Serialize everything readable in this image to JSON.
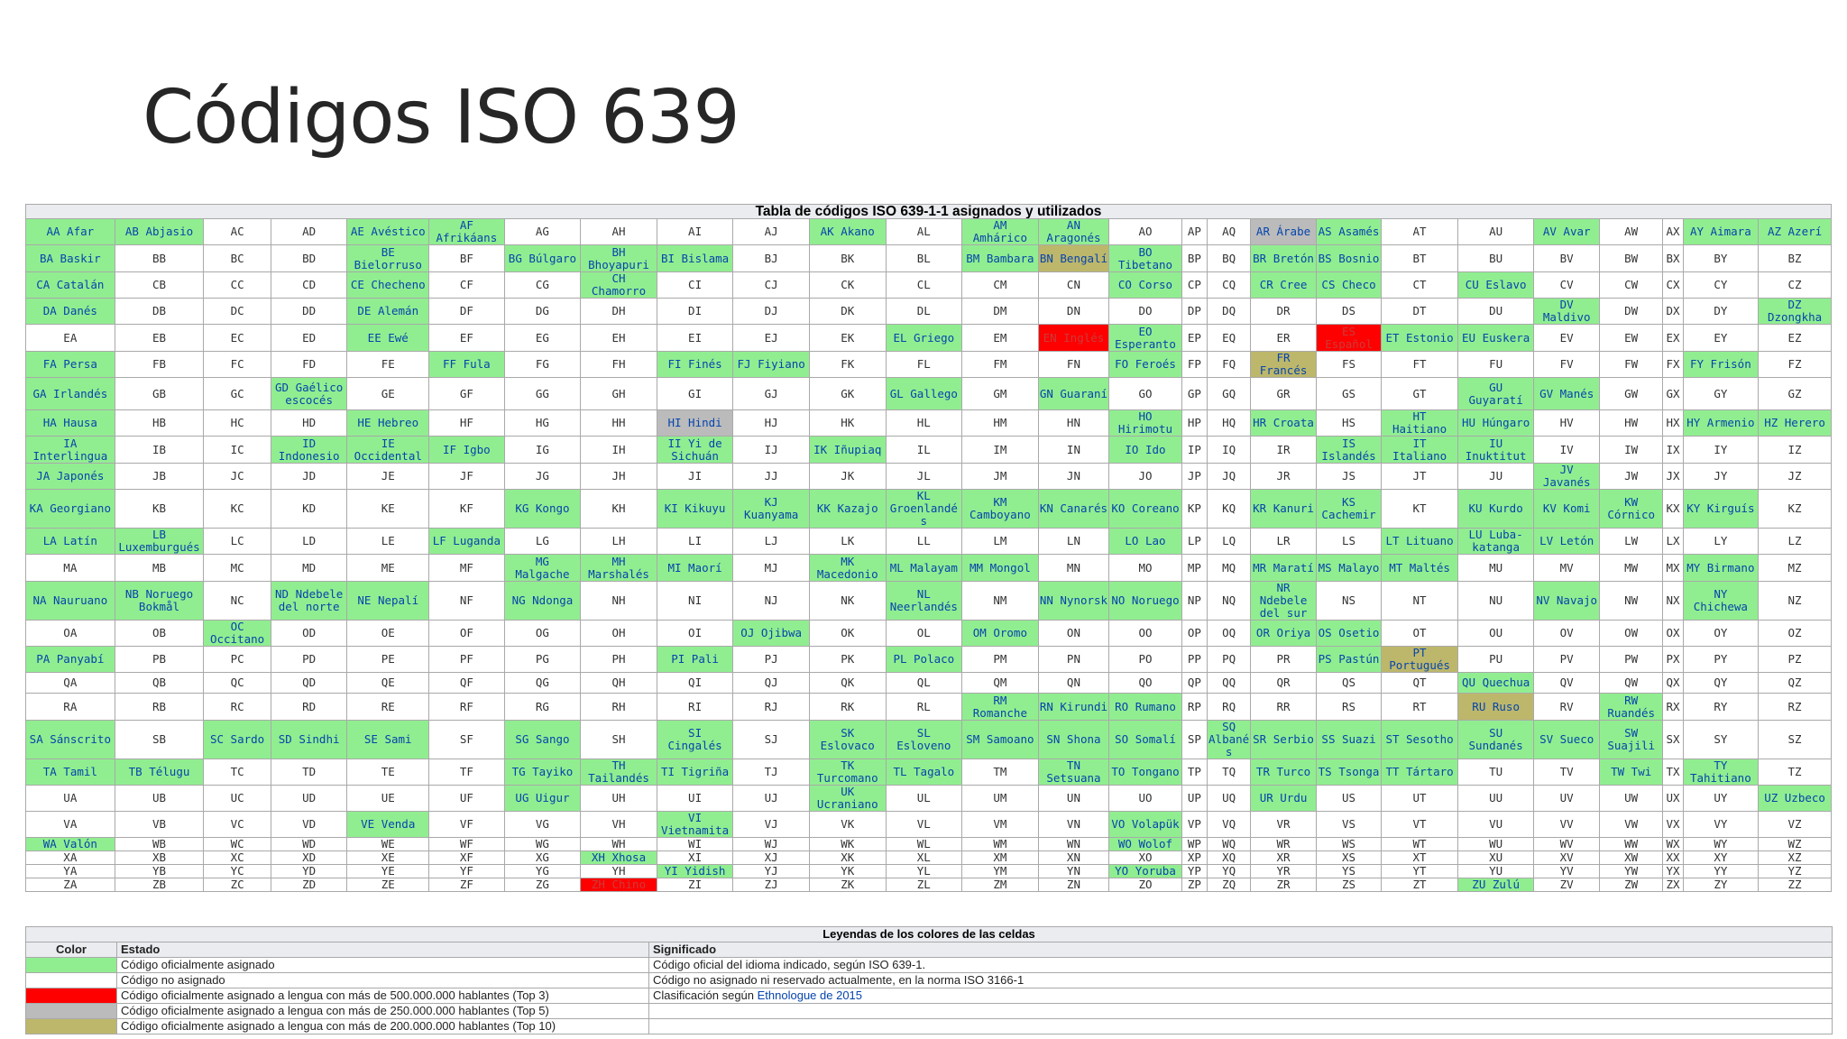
{
  "slide": {
    "title": "Códigos ISO 639"
  },
  "table": {
    "caption": "Tabla de códigos ISO 639-1-1 asignados y utilizados",
    "legend_caption": "Leyendas de los colores de las celdas",
    "rows": [
      [
        "g:AA Afar",
        "g:AB Abjasio",
        "AC",
        "AD",
        "g:AE Avéstico",
        "g:AF Afrikáans",
        "AG",
        "AH",
        "AI",
        "AJ",
        "g:AK Akano",
        "AL",
        "g:AM Amhárico",
        "g:AN Aragonés",
        "AO",
        "AP",
        "AQ",
        "s:AR Árabe",
        "g:AS Asamés",
        "AT",
        "AU",
        "g:AV Avar",
        "AW",
        "AX",
        "g:AY Aimara",
        "g:AZ Azerí"
      ],
      [
        "g:BA Baskir",
        "BB",
        "BC",
        "BD",
        "g:BE Bielorruso",
        "BF",
        "g:BG Búlgaro",
        "g:BH Bhoyapuri",
        "g:BI Bislama",
        "BJ",
        "BK",
        "BL",
        "g:BM Bambara",
        "o:BN Bengalí",
        "g:BO Tibetano",
        "BP",
        "BQ",
        "g:BR Bretón",
        "g:BS Bosnio",
        "BT",
        "BU",
        "BV",
        "BW",
        "BX",
        "BY",
        "BZ"
      ],
      [
        "g:CA Catalán",
        "CB",
        "CC",
        "CD",
        "g:CE Checheno",
        "CF",
        "CG",
        "g:CH Chamorro",
        "CI",
        "CJ",
        "CK",
        "CL",
        "CM",
        "CN",
        "g:CO Corso",
        "CP",
        "CQ",
        "g:CR Cree",
        "g:CS Checo",
        "CT",
        "g:CU Eslavo",
        "CV",
        "CW",
        "CX",
        "CY",
        "CZ"
      ],
      [
        "g:DA Danés",
        "DB",
        "DC",
        "DD",
        "g:DE Alemán",
        "DF",
        "DG",
        "DH",
        "DI",
        "DJ",
        "DK",
        "DL",
        "DM",
        "DN",
        "DO",
        "DP",
        "DQ",
        "DR",
        "DS",
        "DT",
        "DU",
        "g:DV Maldivo",
        "DW",
        "DX",
        "DY",
        "g:DZ Dzongkha"
      ],
      [
        "EA",
        "EB",
        "EC",
        "ED",
        "g:EE Ewé",
        "EF",
        "EG",
        "EH",
        "EI",
        "EJ",
        "EK",
        "g:EL Griego",
        "EM",
        "r:EN Inglés",
        "g:EO Esperanto",
        "EP",
        "EQ",
        "ER",
        "r:ES Español",
        "g:ET Estonio",
        "g:EU Euskera",
        "EV",
        "EW",
        "EX",
        "EY",
        "EZ"
      ],
      [
        "g:FA Persa",
        "FB",
        "FC",
        "FD",
        "FE",
        "g:FF Fula",
        "FG",
        "FH",
        "g:FI Finés",
        "g:FJ Fiyiano",
        "FK",
        "FL",
        "FM",
        "FN",
        "g:FO Feroés",
        "FP",
        "FQ",
        "o:FR Francés",
        "FS",
        "FT",
        "FU",
        "FV",
        "FW",
        "FX",
        "g:FY Frisón",
        "FZ"
      ],
      [
        "g:GA Irlandés",
        "GB",
        "GC",
        "g:GD Gaélico escocés",
        "GE",
        "GF",
        "GG",
        "GH",
        "GI",
        "GJ",
        "GK",
        "g:GL Gallego",
        "GM",
        "g:GN Guaraní",
        "GO",
        "GP",
        "GQ",
        "GR",
        "GS",
        "GT",
        "g:GU Guyaratí",
        "g:GV Manés",
        "GW",
        "GX",
        "GY",
        "GZ"
      ],
      [
        "g:HA Hausa",
        "HB",
        "HC",
        "HD",
        "g:HE Hebreo",
        "HF",
        "HG",
        "HH",
        "s:HI Hindi",
        "HJ",
        "HK",
        "HL",
        "HM",
        "HN",
        "g:HO Hirimotu",
        "HP",
        "HQ",
        "g:HR Croata",
        "HS",
        "g:HT Haitiano",
        "g:HU Húngaro",
        "HV",
        "HW",
        "HX",
        "g:HY Armenio",
        "g:HZ Herero"
      ],
      [
        "g:IA Interlingua",
        "IB",
        "IC",
        "g:ID Indonesio",
        "g:IE Occidental",
        "g:IF Igbo",
        "IG",
        "IH",
        "g:II Yi de Sichuán",
        "IJ",
        "g:IK Iñupiaq",
        "IL",
        "IM",
        "IN",
        "g:IO Ido",
        "IP",
        "IQ",
        "IR",
        "g:IS Islandés",
        "g:IT Italiano",
        "g:IU Inuktitut",
        "IV",
        "IW",
        "IX",
        "IY",
        "IZ"
      ],
      [
        "g:JA Japonés",
        "JB",
        "JC",
        "JD",
        "JE",
        "JF",
        "JG",
        "JH",
        "JI",
        "JJ",
        "JK",
        "JL",
        "JM",
        "JN",
        "JO",
        "JP",
        "JQ",
        "JR",
        "JS",
        "JT",
        "JU",
        "g:JV Javanés",
        "JW",
        "JX",
        "JY",
        "JZ"
      ],
      [
        "g:KA Georgiano",
        "KB",
        "KC",
        "KD",
        "KE",
        "KF",
        "g:KG Kongo",
        "KH",
        "g:KI Kikuyu",
        "g:KJ Kuanyama",
        "g:KK Kazajo",
        "g:KL Groenlandés",
        "g:KM Camboyano",
        "g:KN Canarés",
        "g:KO Coreano",
        "KP",
        "KQ",
        "g:KR Kanuri",
        "g:KS Cachemir",
        "KT",
        "g:KU Kurdo",
        "g:KV Komi",
        "g:KW Córnico",
        "KX",
        "g:KY Kirguís",
        "KZ"
      ],
      [
        "g:LA Latín",
        "g:LB Luxemburgués",
        "LC",
        "LD",
        "LE",
        "g:LF Luganda",
        "LG",
        "LH",
        "LI",
        "LJ",
        "LK",
        "LL",
        "LM",
        "LN",
        "g:LO Lao",
        "LP",
        "LQ",
        "LR",
        "LS",
        "g:LT Lituano",
        "g:LU Luba-katanga",
        "g:LV Letón",
        "LW",
        "LX",
        "LY",
        "LZ"
      ],
      [
        "MA",
        "MB",
        "MC",
        "MD",
        "ME",
        "MF",
        "g:MG Malgache",
        "g:MH Marshalés",
        "g:MI Maorí",
        "MJ",
        "g:MK Macedonio",
        "g:ML Malayam",
        "g:MM Mongol",
        "MN",
        "MO",
        "MP",
        "MQ",
        "g:MR Maratí",
        "g:MS Malayo",
        "g:MT Maltés",
        "MU",
        "MV",
        "MW",
        "MX",
        "g:MY Birmano",
        "MZ"
      ],
      [
        "g:NA Nauruano",
        "g:NB Noruego Bokmål",
        "NC",
        "g:ND Ndebele del norte",
        "g:NE Nepalí",
        "NF",
        "g:NG Ndonga",
        "NH",
        "NI",
        "NJ",
        "NK",
        "g:NL Neerlandés",
        "NM",
        "g:NN Nynorsk",
        "g:NO Noruego",
        "NP",
        "NQ",
        "g:NR Ndebele del sur",
        "NS",
        "NT",
        "NU",
        "g:NV Navajo",
        "NW",
        "NX",
        "g:NY Chichewa",
        "NZ"
      ],
      [
        "OA",
        "OB",
        "g:OC Occitano",
        "OD",
        "OE",
        "OF",
        "OG",
        "OH",
        "OI",
        "g:OJ Ojibwa",
        "OK",
        "OL",
        "g:OM Oromo",
        "ON",
        "OO",
        "OP",
        "OQ",
        "g:OR Oriya",
        "g:OS Osetio",
        "OT",
        "OU",
        "OV",
        "OW",
        "OX",
        "OY",
        "OZ"
      ],
      [
        "g:PA Panyabí",
        "PB",
        "PC",
        "PD",
        "PE",
        "PF",
        "PG",
        "PH",
        "g:PI Pali",
        "PJ",
        "PK",
        "g:PL Polaco",
        "PM",
        "PN",
        "PO",
        "PP",
        "PQ",
        "PR",
        "g:PS Pastún",
        "o:PT Portugués",
        "PU",
        "PV",
        "PW",
        "PX",
        "PY",
        "PZ"
      ],
      [
        "QA",
        "QB",
        "QC",
        "QD",
        "QE",
        "QF",
        "QG",
        "QH",
        "QI",
        "QJ",
        "QK",
        "QL",
        "QM",
        "QN",
        "QO",
        "QP",
        "QQ",
        "QR",
        "QS",
        "QT",
        "g:QU Quechua",
        "QV",
        "QW",
        "QX",
        "QY",
        "QZ"
      ],
      [
        "RA",
        "RB",
        "RC",
        "RD",
        "RE",
        "RF",
        "RG",
        "RH",
        "RI",
        "RJ",
        "RK",
        "RL",
        "g:RM Romanche",
        "g:RN Kirundi",
        "g:RO Rumano",
        "RP",
        "RQ",
        "RR",
        "RS",
        "RT",
        "o:RU Ruso",
        "RV",
        "g:RW Ruandés",
        "RX",
        "RY",
        "RZ"
      ],
      [
        "g:SA Sánscrito",
        "SB",
        "g:SC Sardo",
        "g:SD Sindhi",
        "g:SE Sami",
        "SF",
        "g:SG Sango",
        "SH",
        "g:SI Cingalés",
        "SJ",
        "g:SK Eslovaco",
        "g:SL Esloveno",
        "g:SM Samoano",
        "g:SN Shona",
        "g:SO Somalí",
        "SP",
        "g:SQ Albanés",
        "g:SR Serbio",
        "g:SS Suazi",
        "g:ST Sesotho",
        "g:SU Sundanés",
        "g:SV Sueco",
        "g:SW Suajili",
        "SX",
        "SY",
        "SZ"
      ],
      [
        "g:TA Tamil",
        "g:TB Télugu",
        "TC",
        "TD",
        "TE",
        "TF",
        "g:TG Tayiko",
        "g:TH Tailandés",
        "g:TI Tigriña",
        "TJ",
        "g:TK Turcomano",
        "g:TL Tagalo",
        "TM",
        "g:TN Setsuana",
        "g:TO Tongano",
        "TP",
        "TQ",
        "g:TR Turco",
        "g:TS Tsonga",
        "g:TT Tártaro",
        "TU",
        "TV",
        "g:TW Twi",
        "TX",
        "g:TY Tahitiano",
        "TZ"
      ],
      [
        "UA",
        "UB",
        "UC",
        "UD",
        "UE",
        "UF",
        "g:UG Uigur",
        "UH",
        "UI",
        "UJ",
        "g:UK Ucraniano",
        "UL",
        "UM",
        "UN",
        "UO",
        "UP",
        "UQ",
        "g:UR Urdu",
        "US",
        "UT",
        "UU",
        "UV",
        "UW",
        "UX",
        "UY",
        "g:UZ Uzbeco"
      ],
      [
        "VA",
        "VB",
        "VC",
        "VD",
        "g:VE Venda",
        "VF",
        "VG",
        "VH",
        "g:VI Vietnamita",
        "VJ",
        "VK",
        "VL",
        "VM",
        "VN",
        "g:VO Volapük",
        "VP",
        "VQ",
        "VR",
        "VS",
        "VT",
        "VU",
        "VV",
        "VW",
        "VX",
        "VY",
        "VZ"
      ],
      [
        "g:WA Valón",
        "WB",
        "WC",
        "WD",
        "WE",
        "WF",
        "WG",
        "WH",
        "WI",
        "WJ",
        "WK",
        "WL",
        "WM",
        "WN",
        "g:WO Wolof",
        "WP",
        "WQ",
        "WR",
        "WS",
        "WT",
        "WU",
        "WV",
        "WW",
        "WX",
        "WY",
        "WZ"
      ],
      [
        "XA",
        "XB",
        "XC",
        "XD",
        "XE",
        "XF",
        "XG",
        "g:XH Xhosa",
        "XI",
        "XJ",
        "XK",
        "XL",
        "XM",
        "XN",
        "XO",
        "XP",
        "XQ",
        "XR",
        "XS",
        "XT",
        "XU",
        "XV",
        "XW",
        "XX",
        "XY",
        "XZ"
      ],
      [
        "YA",
        "YB",
        "YC",
        "YD",
        "YE",
        "YF",
        "YG",
        "YH",
        "g:YI Yidish",
        "YJ",
        "YK",
        "YL",
        "YM",
        "YN",
        "g:YO Yoruba",
        "YP",
        "YQ",
        "YR",
        "YS",
        "YT",
        "YU",
        "YV",
        "YW",
        "YX",
        "YY",
        "YZ"
      ],
      [
        "ZA",
        "ZB",
        "ZC",
        "ZD",
        "ZE",
        "ZF",
        "ZG",
        "r:ZH Chino",
        "ZI",
        "ZJ",
        "ZK",
        "ZL",
        "ZM",
        "ZN",
        "ZO",
        "ZP",
        "ZQ",
        "ZR",
        "ZS",
        "ZT",
        "g:ZU Zulú",
        "ZV",
        "ZW",
        "ZX",
        "ZY",
        "ZZ"
      ]
    ]
  },
  "legend": {
    "headers": {
      "color": "Color",
      "status": "Estado",
      "meaning": "Significado"
    },
    "rows": [
      {
        "swatch": "#90ee90",
        "status": "Código oficialmente asignado",
        "meaning": "Código oficial del idioma indicado, según ISO 639-1."
      },
      {
        "swatch": "#ffffff",
        "status": "Código no asignado",
        "meaning": "Código no asignado ni reservado actualmente, en la norma ISO 3166-1"
      },
      {
        "swatch": "#ff0000",
        "status": "Código oficialmente asignado a lengua con más de 500.000.000 hablantes (Top 3)",
        "meaning_prefix": "Clasificación según ",
        "meaning_link": "Ethnologue de 2015"
      },
      {
        "swatch": "#bbbbbb",
        "status": "Código oficialmente asignado a lengua con más de 250.000.000 hablantes (Top 5)",
        "meaning": ""
      },
      {
        "swatch": "#bdb76b",
        "status": "Código oficialmente asignado a lengua con más de 200.000.000 hablantes (Top 10)",
        "meaning": ""
      }
    ]
  },
  "colors": {
    "assigned": "#90ee90",
    "top3": "#ff0000",
    "top5": "#bbbbbb",
    "top10": "#bdb76b",
    "link": "#0645ad"
  }
}
